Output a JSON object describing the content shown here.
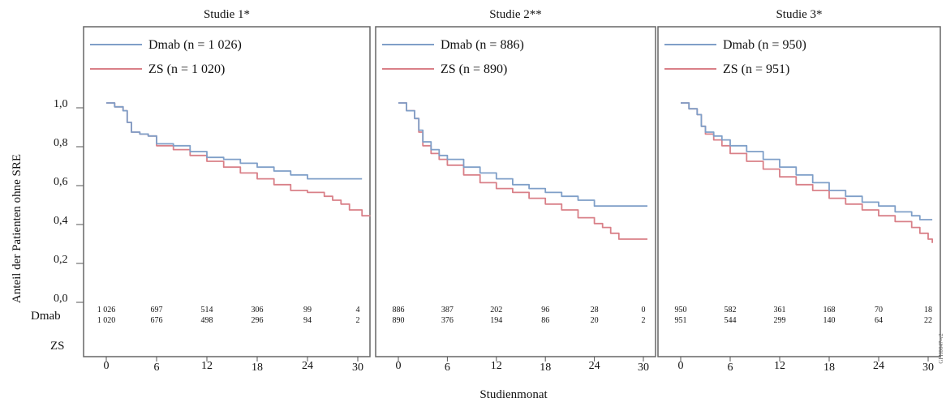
{
  "chart_data": {
    "type": "line",
    "xlabel": "Studienmonat",
    "ylabel": "Anteil der Patienten ohne SRE",
    "y_ticks": [
      "1,0",
      "0,8",
      "0,6",
      "0,4",
      "0,2",
      "0,0"
    ],
    "ylim": [
      0,
      1.0
    ],
    "x_ticks": [
      "0",
      "6",
      "12",
      "18",
      "24",
      "30"
    ],
    "xlim": [
      0,
      30
    ],
    "grid": false,
    "legend": "top-left",
    "risk_row_labels": [
      "Dmab",
      "ZS"
    ],
    "footnote_code": "GPH0047-v2",
    "colors": {
      "dmab": "#7f9fc8",
      "zs": "#d98088"
    },
    "panels": [
      {
        "title": "Studie 1*",
        "series": [
          {
            "name": "Dmab (n = 1 026)",
            "x": [
              0,
              1,
              2,
              2.5,
              3,
              4,
              5,
              6,
              8,
              10,
              12,
              14,
              16,
              18,
              20,
              22,
              24,
              26,
              28,
              30.5
            ],
            "y": [
              1.0,
              0.98,
              0.96,
              0.9,
              0.85,
              0.84,
              0.83,
              0.79,
              0.78,
              0.75,
              0.72,
              0.71,
              0.69,
              0.67,
              0.65,
              0.63,
              0.61,
              0.61,
              0.61,
              0.61
            ]
          },
          {
            "name": "ZS (n = 1 020)",
            "x": [
              0,
              1,
              2,
              2.5,
              3,
              4,
              5,
              6,
              8,
              10,
              12,
              14,
              16,
              18,
              20,
              22,
              24,
              26,
              27,
              28,
              29,
              30.5,
              31.5
            ],
            "y": [
              1.0,
              0.98,
              0.96,
              0.9,
              0.85,
              0.84,
              0.83,
              0.78,
              0.76,
              0.73,
              0.7,
              0.67,
              0.64,
              0.61,
              0.58,
              0.55,
              0.54,
              0.52,
              0.5,
              0.48,
              0.45,
              0.42,
              0.42
            ]
          }
        ],
        "risk": {
          "Dmab": [
            "1 026",
            "697",
            "514",
            "306",
            "99",
            "4"
          ],
          "ZS": [
            "1 020",
            "676",
            "498",
            "296",
            "94",
            "2"
          ]
        }
      },
      {
        "title": "Studie 2**",
        "series": [
          {
            "name": "Dmab (n = 886)",
            "x": [
              0,
              1,
              2,
              2.5,
              3,
              4,
              5,
              6,
              8,
              10,
              12,
              14,
              16,
              18,
              20,
              22,
              24,
              26,
              28,
              30.5
            ],
            "y": [
              1.0,
              0.96,
              0.92,
              0.86,
              0.8,
              0.76,
              0.73,
              0.71,
              0.67,
              0.64,
              0.61,
              0.58,
              0.56,
              0.54,
              0.52,
              0.5,
              0.47,
              0.47,
              0.47,
              0.47
            ]
          },
          {
            "name": "ZS (n = 890)",
            "x": [
              0,
              1,
              2,
              2.5,
              3,
              4,
              5,
              6,
              8,
              10,
              12,
              14,
              16,
              18,
              20,
              22,
              24,
              25,
              26,
              27,
              28,
              30.5
            ],
            "y": [
              1.0,
              0.96,
              0.92,
              0.85,
              0.78,
              0.74,
              0.71,
              0.68,
              0.63,
              0.59,
              0.56,
              0.54,
              0.51,
              0.48,
              0.45,
              0.41,
              0.38,
              0.36,
              0.33,
              0.3,
              0.3,
              0.3
            ]
          }
        ],
        "risk": {
          "Dmab": [
            "886",
            "387",
            "202",
            "96",
            "28",
            "0"
          ],
          "ZS": [
            "890",
            "376",
            "194",
            "86",
            "20",
            "2"
          ]
        }
      },
      {
        "title": "Studie 3*",
        "series": [
          {
            "name": "Dmab (n = 950)",
            "x": [
              0,
              1,
              2,
              2.5,
              3,
              4,
              5,
              6,
              8,
              10,
              12,
              14,
              16,
              18,
              20,
              22,
              24,
              26,
              28,
              29,
              30.5
            ],
            "y": [
              1.0,
              0.97,
              0.94,
              0.88,
              0.85,
              0.83,
              0.81,
              0.78,
              0.75,
              0.71,
              0.67,
              0.63,
              0.59,
              0.55,
              0.52,
              0.49,
              0.47,
              0.44,
              0.42,
              0.4,
              0.4
            ]
          },
          {
            "name": "ZS (n = 951)",
            "x": [
              0,
              1,
              2,
              2.5,
              3,
              4,
              5,
              6,
              8,
              10,
              12,
              14,
              16,
              18,
              20,
              22,
              24,
              26,
              28,
              29,
              30,
              30.5
            ],
            "y": [
              1.0,
              0.97,
              0.94,
              0.88,
              0.84,
              0.81,
              0.78,
              0.74,
              0.7,
              0.66,
              0.62,
              0.58,
              0.55,
              0.51,
              0.48,
              0.45,
              0.42,
              0.39,
              0.36,
              0.33,
              0.3,
              0.28
            ]
          }
        ],
        "risk": {
          "Dmab": [
            "950",
            "582",
            "361",
            "168",
            "70",
            "18"
          ],
          "ZS": [
            "951",
            "544",
            "299",
            "140",
            "64",
            "22"
          ]
        }
      }
    ]
  }
}
